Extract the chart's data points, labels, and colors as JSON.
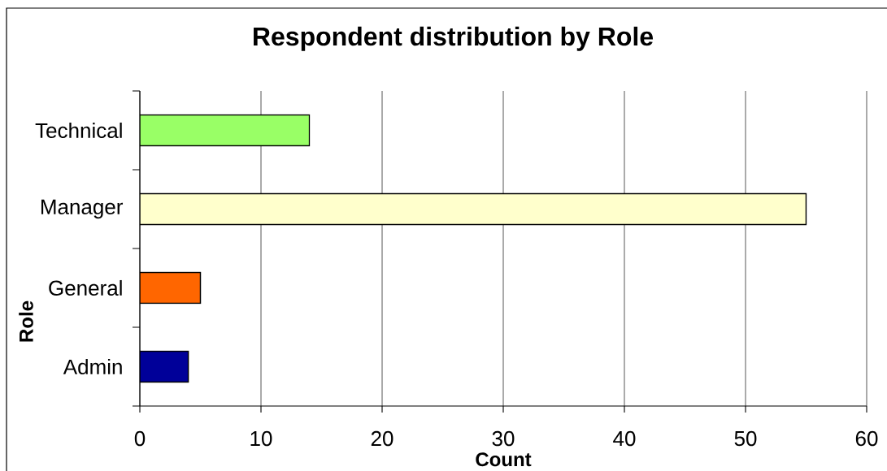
{
  "chart_data": {
    "type": "bar",
    "orientation": "horizontal",
    "title": "Respondent distribution by Role",
    "xlabel": "Count",
    "ylabel": "Role",
    "categories": [
      "Technical",
      "Manager",
      "General",
      "Admin"
    ],
    "values": [
      14,
      55,
      5,
      4
    ],
    "colors": [
      "#99ff66",
      "#ffffcc",
      "#ff6600",
      "#000099"
    ],
    "xlim": [
      0,
      60
    ],
    "xticks": [
      0,
      10,
      20,
      30,
      40,
      50,
      60
    ],
    "grid": "x"
  }
}
